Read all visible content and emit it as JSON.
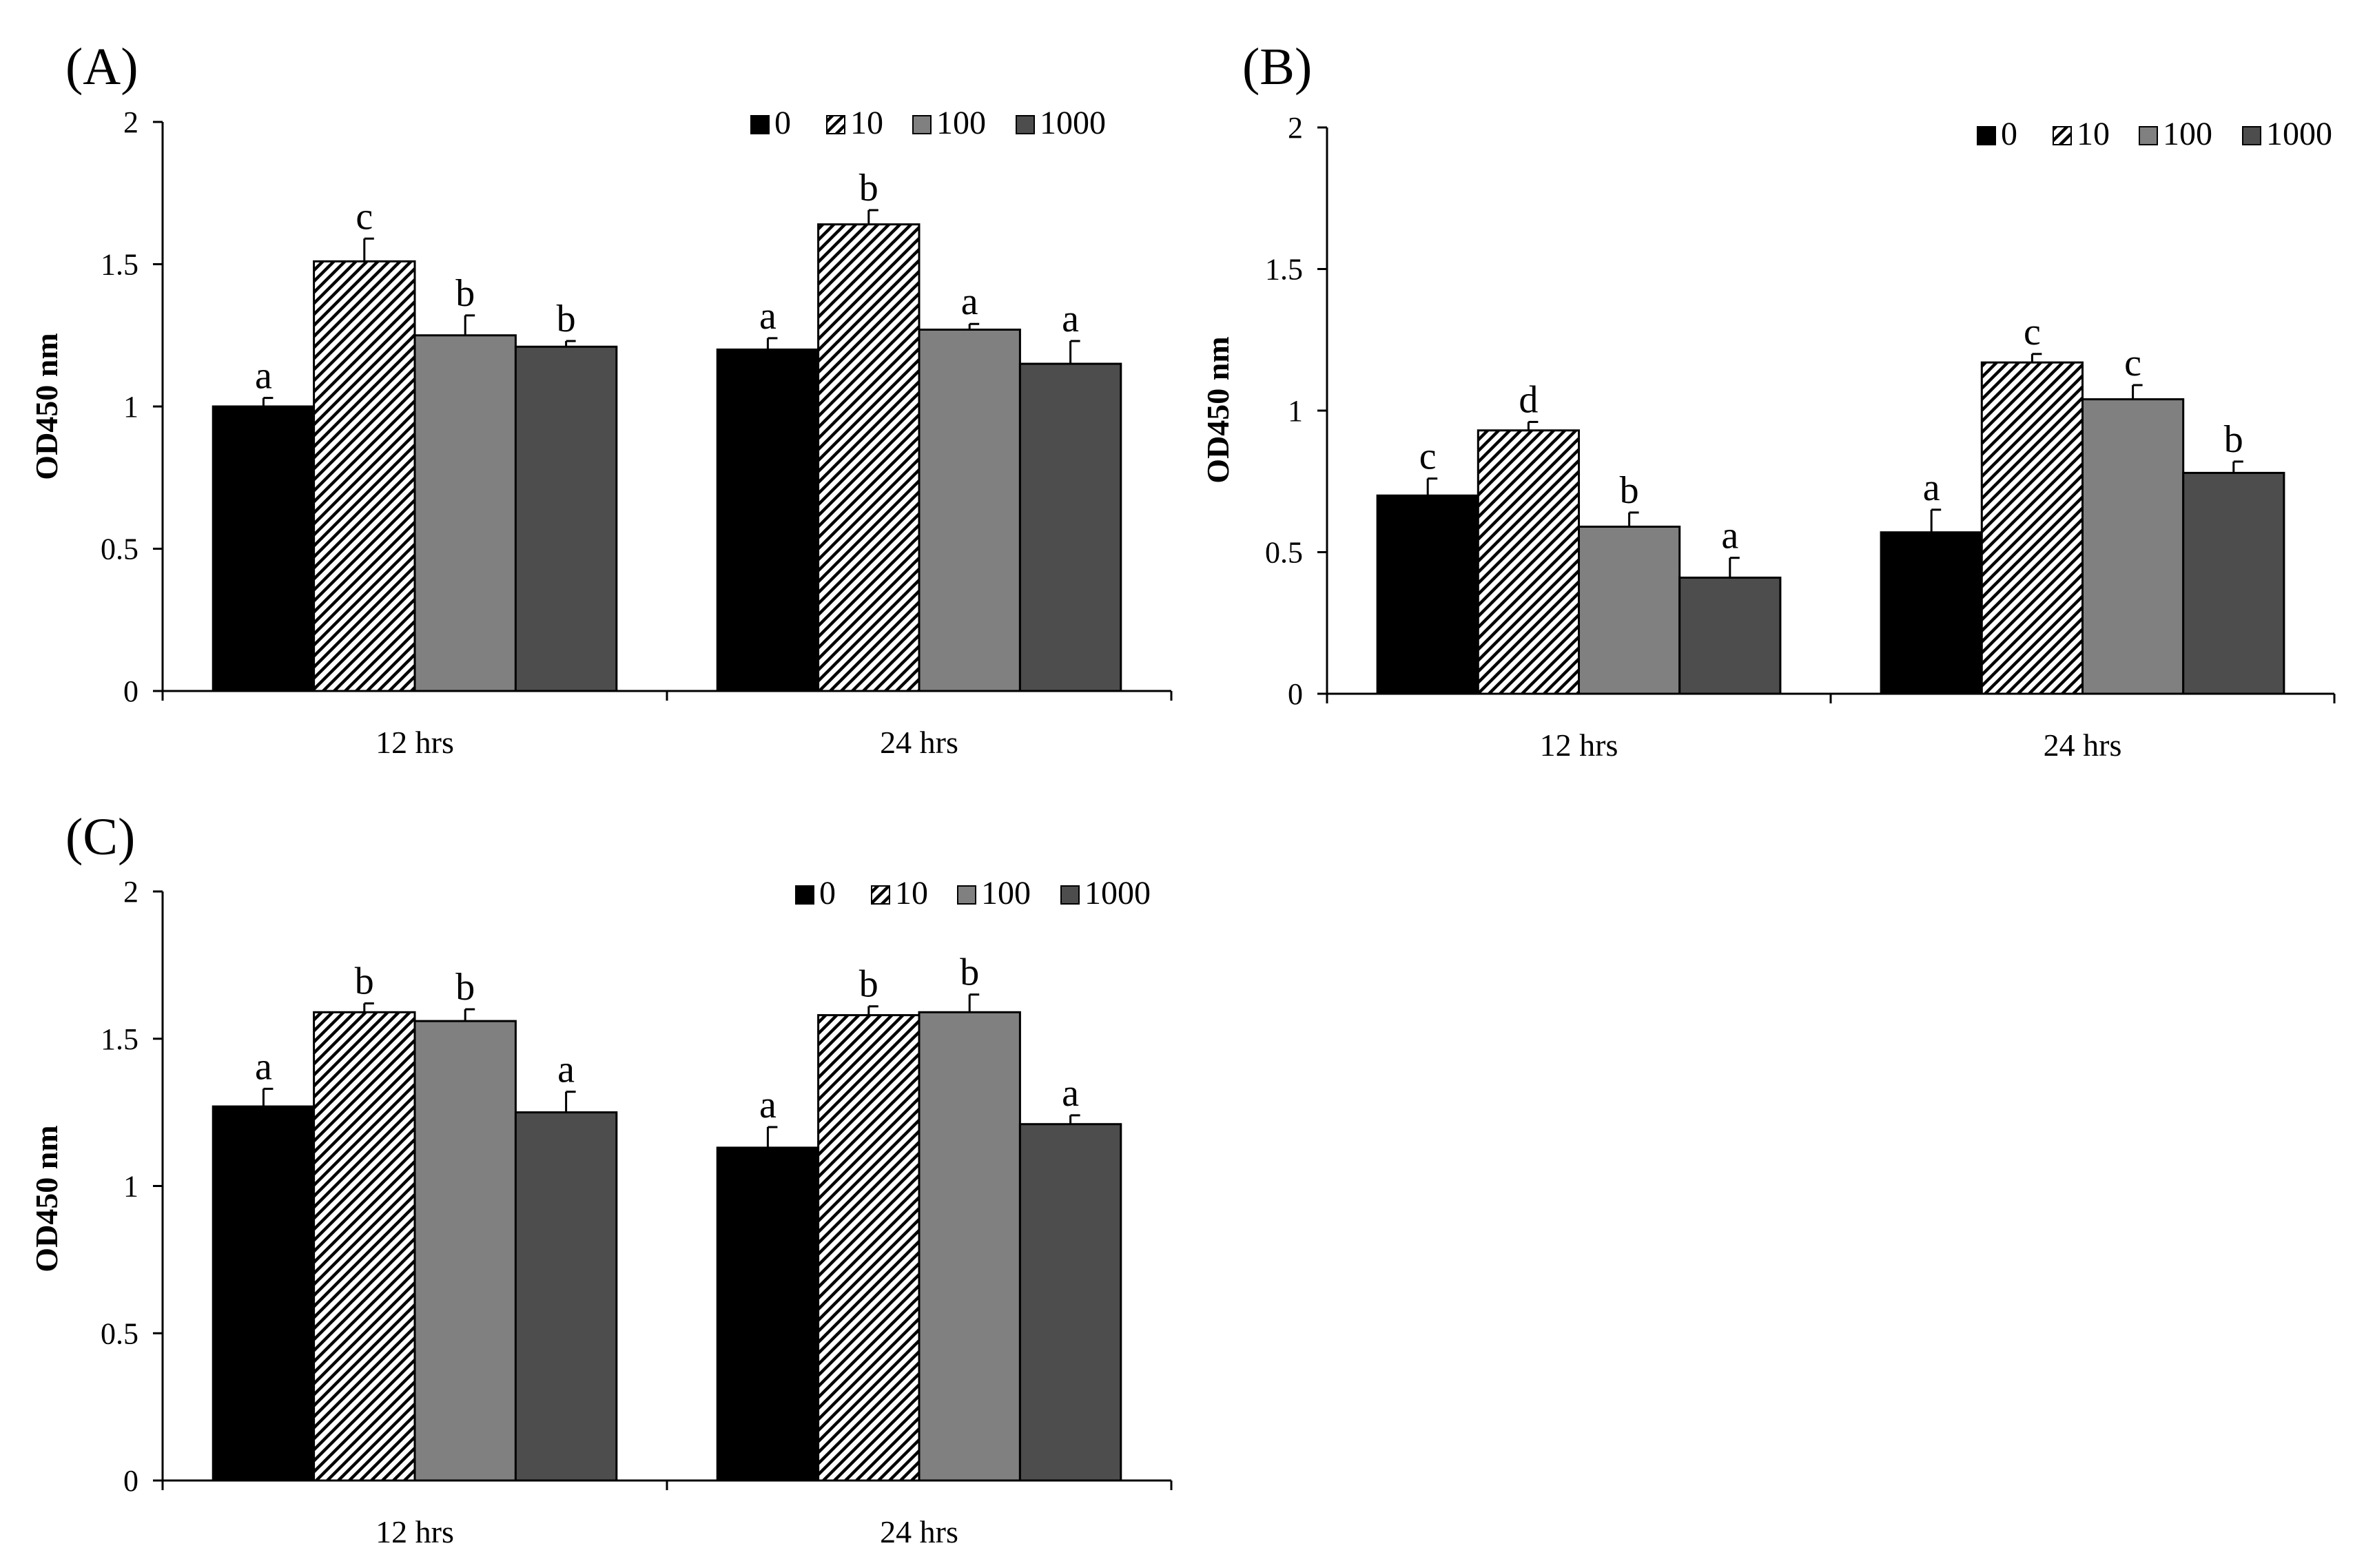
{
  "figure": {
    "panel_count": 3
  },
  "colors": {
    "series": [
      "#000000",
      "hatch",
      "#808080",
      "#4d4d4d"
    ],
    "axis": "#000000",
    "background": "#ffffff"
  },
  "chart_data": [
    {
      "type": "bar",
      "panel_label": "(A)",
      "title": "",
      "xlabel": "",
      "ylabel": "OD450 nm",
      "ylim": [
        0,
        2
      ],
      "yticks": [
        "0",
        "0.5",
        "1",
        "1.5",
        "2"
      ],
      "grid": false,
      "legend": "top-right",
      "categories": [
        "12 hrs",
        "24 hrs"
      ],
      "series": [
        {
          "name": "0",
          "values": [
            1.0,
            1.2
          ],
          "errors": [
            0.03,
            0.04
          ],
          "letters": [
            "a",
            "a"
          ]
        },
        {
          "name": "10",
          "values": [
            1.51,
            1.64
          ],
          "errors": [
            0.08,
            0.05
          ],
          "letters": [
            "c",
            "b"
          ]
        },
        {
          "name": "100",
          "values": [
            1.25,
            1.27
          ],
          "errors": [
            0.07,
            0.02
          ],
          "letters": [
            "b",
            "a"
          ]
        },
        {
          "name": "1000",
          "values": [
            1.21,
            1.15
          ],
          "errors": [
            0.02,
            0.08
          ],
          "letters": [
            "b",
            "a"
          ]
        }
      ]
    },
    {
      "type": "bar",
      "panel_label": "(B)",
      "title": "",
      "xlabel": "",
      "ylabel": "OD450 nm",
      "ylim": [
        0,
        2
      ],
      "yticks": [
        "0",
        "0.5",
        "1",
        "1.5",
        "2"
      ],
      "grid": false,
      "legend": "top-right",
      "categories": [
        "12 hrs",
        "24 hrs"
      ],
      "series": [
        {
          "name": "0",
          "values": [
            0.7,
            0.57
          ],
          "errors": [
            0.06,
            0.08
          ],
          "letters": [
            "c",
            "a"
          ]
        },
        {
          "name": "10",
          "values": [
            0.93,
            1.17
          ],
          "errors": [
            0.03,
            0.03
          ],
          "letters": [
            "d",
            "c"
          ]
        },
        {
          "name": "100",
          "values": [
            0.59,
            1.04
          ],
          "errors": [
            0.05,
            0.05
          ],
          "letters": [
            "b",
            "c"
          ]
        },
        {
          "name": "1000",
          "values": [
            0.41,
            0.78
          ],
          "errors": [
            0.07,
            0.04
          ],
          "letters": [
            "a",
            "b"
          ]
        }
      ]
    },
    {
      "type": "bar",
      "panel_label": "(C)",
      "title": "",
      "xlabel": "",
      "ylabel": "OD450 nm",
      "ylim": [
        0,
        2
      ],
      "yticks": [
        "0",
        "0.5",
        "1",
        "1.5",
        "2"
      ],
      "grid": false,
      "legend": "top-right",
      "categories": [
        "12 hrs",
        "24 hrs"
      ],
      "series": [
        {
          "name": "0",
          "values": [
            1.27,
            1.13
          ],
          "errors": [
            0.06,
            0.07
          ],
          "letters": [
            "a",
            "a"
          ]
        },
        {
          "name": "10",
          "values": [
            1.59,
            1.58
          ],
          "errors": [
            0.03,
            0.03
          ],
          "letters": [
            "b",
            "b"
          ]
        },
        {
          "name": "100",
          "values": [
            1.56,
            1.59
          ],
          "errors": [
            0.04,
            0.06
          ],
          "letters": [
            "b",
            "b"
          ]
        },
        {
          "name": "1000",
          "values": [
            1.25,
            1.21
          ],
          "errors": [
            0.07,
            0.03
          ],
          "letters": [
            "a",
            "a"
          ]
        }
      ]
    }
  ]
}
